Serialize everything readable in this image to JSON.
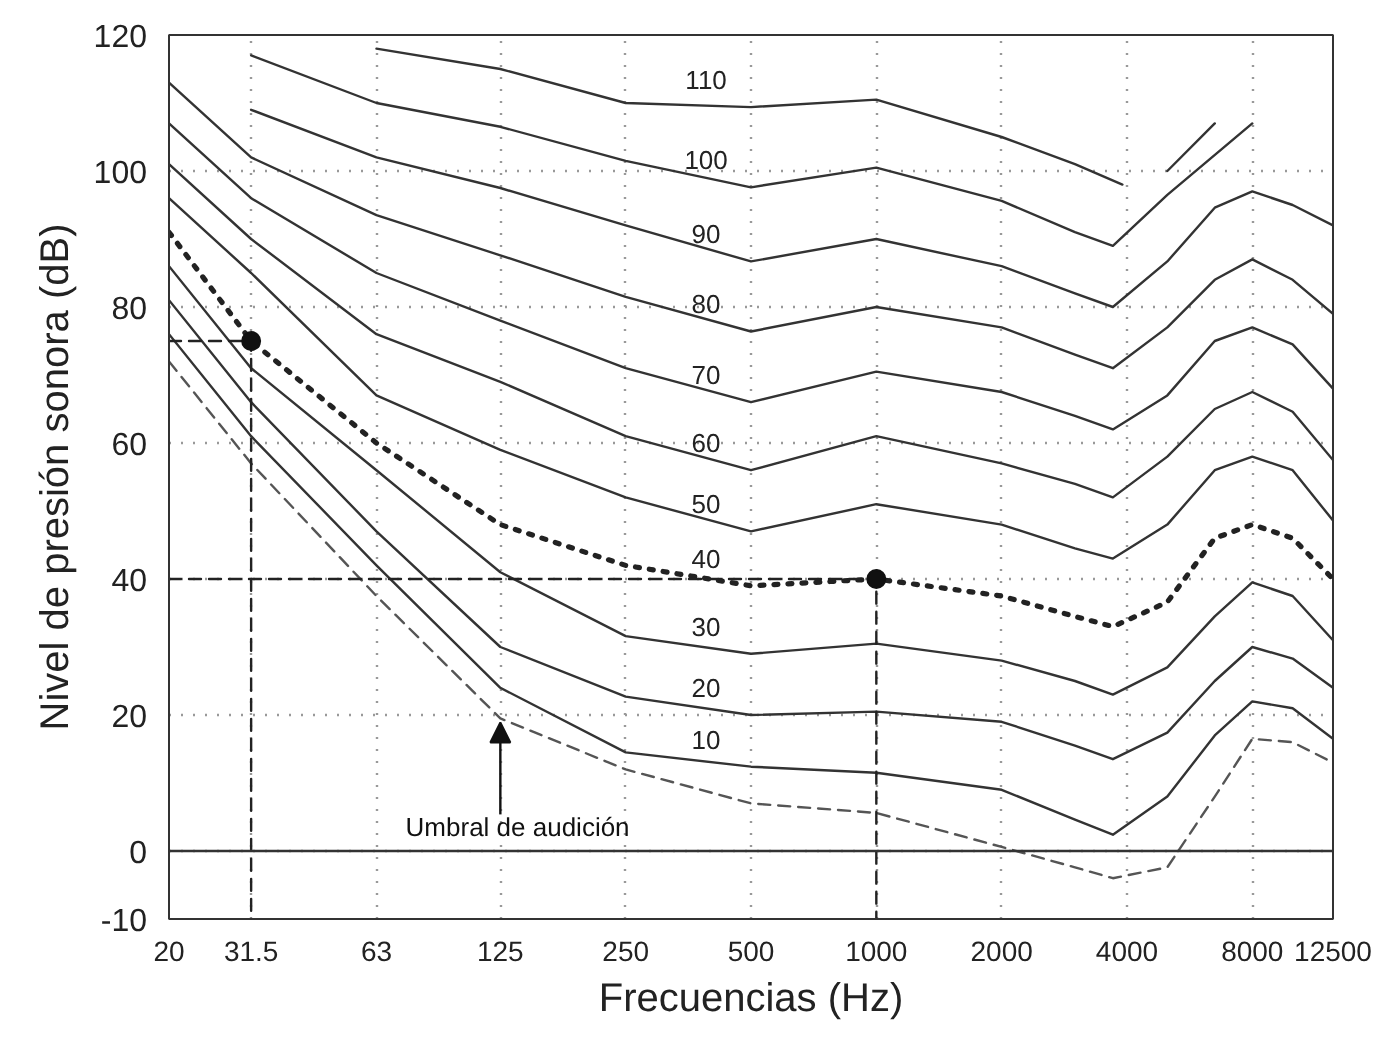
{
  "chart_data": {
    "type": "line",
    "xlabel": "Frecuencias (Hz)",
    "ylabel": "Nivel de presión sonora (dB)",
    "log": "x",
    "xlim": [
      20,
      12500
    ],
    "ylim": [
      -10,
      120
    ],
    "xticks": [
      20,
      31.5,
      63,
      125,
      250,
      500,
      1000,
      2000,
      4000,
      8000,
      12500
    ],
    "yticks": [
      -10,
      0,
      20,
      40,
      60,
      80,
      100,
      120
    ],
    "grid": true,
    "marker": "none",
    "line_style": "solid",
    "ref_lines": [
      {
        "axis": "y",
        "value": 0,
        "color": "#333333",
        "line_style": "solid"
      }
    ],
    "annotations": [
      {
        "text": "Umbral de audición",
        "x": 125,
        "y": 19.5
      }
    ],
    "series": [
      {
        "name": "110",
        "color": "#333333",
        "x": [
          63,
          125,
          250,
          500,
          1000,
          2000,
          3000,
          3900,
          4100,
          5000,
          6500
        ],
        "values": [
          118,
          115,
          110,
          109.4,
          110.5,
          105,
          101,
          98,
          null,
          100,
          107
        ]
      },
      {
        "name": "100",
        "color": "#333333",
        "x": [
          31.5,
          63,
          125,
          250,
          500,
          1000,
          2000,
          3000,
          3700,
          5000,
          8000
        ],
        "values": [
          117,
          110,
          106.5,
          101.5,
          97.6,
          100.5,
          95.6,
          91,
          89,
          96.5,
          107
        ]
      },
      {
        "name": "90",
        "color": "#333333",
        "x": [
          31.5,
          63,
          125,
          250,
          500,
          1000,
          2000,
          3000,
          3700,
          5000,
          6500,
          8000,
          10000,
          12500
        ],
        "values": [
          109,
          102,
          97.5,
          92,
          86.7,
          90,
          86,
          82,
          80,
          86.7,
          94.6,
          97,
          95,
          92
        ]
      },
      {
        "name": "80",
        "color": "#333333",
        "x": [
          20,
          31.5,
          63,
          125,
          250,
          500,
          1000,
          2000,
          3000,
          3700,
          5000,
          6500,
          8000,
          10000,
          12500
        ],
        "values": [
          113,
          102,
          93.5,
          87.6,
          81.5,
          76.4,
          80,
          77,
          73,
          71,
          77,
          84,
          87,
          84,
          79
        ]
      },
      {
        "name": "70",
        "color": "#333333",
        "x": [
          20,
          31.5,
          63,
          125,
          250,
          500,
          1000,
          2000,
          3000,
          3700,
          5000,
          6500,
          8000,
          10000,
          12500
        ],
        "values": [
          107,
          96,
          85,
          78,
          71,
          66,
          70.5,
          67.5,
          64,
          62,
          67,
          75,
          77,
          74.5,
          68
        ]
      },
      {
        "name": "60",
        "color": "#333333",
        "x": [
          20,
          31.5,
          63,
          125,
          250,
          500,
          1000,
          2000,
          3000,
          3700,
          5000,
          6500,
          8000,
          10000,
          12500
        ],
        "values": [
          101,
          90,
          76,
          69,
          61,
          56,
          61,
          57,
          54,
          52,
          58,
          65,
          67.5,
          64.6,
          57.5
        ]
      },
      {
        "name": "50",
        "color": "#333333",
        "x": [
          20,
          31.5,
          63,
          125,
          250,
          500,
          1000,
          2000,
          3000,
          3700,
          5000,
          6500,
          8000,
          10000,
          12500
        ],
        "values": [
          96,
          85,
          67,
          59,
          52,
          47,
          51,
          48,
          44.5,
          43,
          48,
          56,
          58,
          56,
          48.6
        ]
      },
      {
        "name": "40",
        "color": "#222222",
        "line_style": "dotted",
        "x": [
          20,
          31.5,
          63,
          125,
          250,
          500,
          1000,
          2000,
          3000,
          3700,
          5000,
          6500,
          8000,
          10000,
          12500
        ],
        "values": [
          91,
          75,
          60,
          48,
          42,
          39,
          40,
          37.5,
          34.5,
          33,
          36.6,
          46,
          48,
          46,
          40
        ]
      },
      {
        "name": "30",
        "color": "#333333",
        "x": [
          20,
          31.5,
          63,
          125,
          250,
          500,
          1000,
          2000,
          3000,
          3700,
          5000,
          6500,
          8000,
          10000,
          12500
        ],
        "values": [
          86,
          71,
          56,
          41,
          31.6,
          29,
          30.5,
          28,
          25,
          23,
          27,
          34.5,
          39.5,
          37.5,
          31
        ]
      },
      {
        "name": "20",
        "color": "#333333",
        "x": [
          20,
          31.5,
          63,
          125,
          250,
          500,
          1000,
          2000,
          3000,
          3700,
          5000,
          6500,
          8000,
          10000,
          12500
        ],
        "values": [
          81,
          66,
          47,
          30,
          22.7,
          20,
          20.5,
          19,
          15.5,
          13.5,
          17.4,
          25,
          30,
          28.3,
          24
        ]
      },
      {
        "name": "10",
        "color": "#333333",
        "x": [
          20,
          31.5,
          63,
          125,
          250,
          500,
          1000,
          2000,
          3000,
          3700,
          5000,
          6500,
          8000,
          10000,
          12500
        ],
        "values": [
          76,
          61,
          42,
          24,
          14.5,
          12.4,
          11.5,
          9,
          4.6,
          2.4,
          8,
          17,
          22,
          21,
          16.5
        ]
      },
      {
        "color": "#555555",
        "line_style": "dashed",
        "x": [
          20,
          31.5,
          63,
          125,
          250,
          500,
          1000,
          2000,
          3000,
          3700,
          5000,
          6500,
          8000,
          10000,
          12500
        ],
        "values": [
          72,
          57,
          37.5,
          19.5,
          12,
          7,
          5.6,
          0.6,
          -2.4,
          -4,
          -2.4,
          8,
          16.5,
          16,
          13
        ]
      },
      {
        "color": "#222222",
        "line_style": "dashed",
        "x": [
          20,
          31.5,
          31.5
        ],
        "values": [
          75,
          75,
          -10
        ]
      },
      {
        "color": "#222222",
        "line_style": "dashed",
        "x": [
          20,
          1000,
          1000
        ],
        "values": [
          40,
          40,
          -10
        ]
      },
      {
        "type": "scatter",
        "color": "#111111",
        "marker": "circle",
        "x": [
          31.5,
          1000
        ],
        "values": [
          75,
          40
        ]
      }
    ]
  }
}
